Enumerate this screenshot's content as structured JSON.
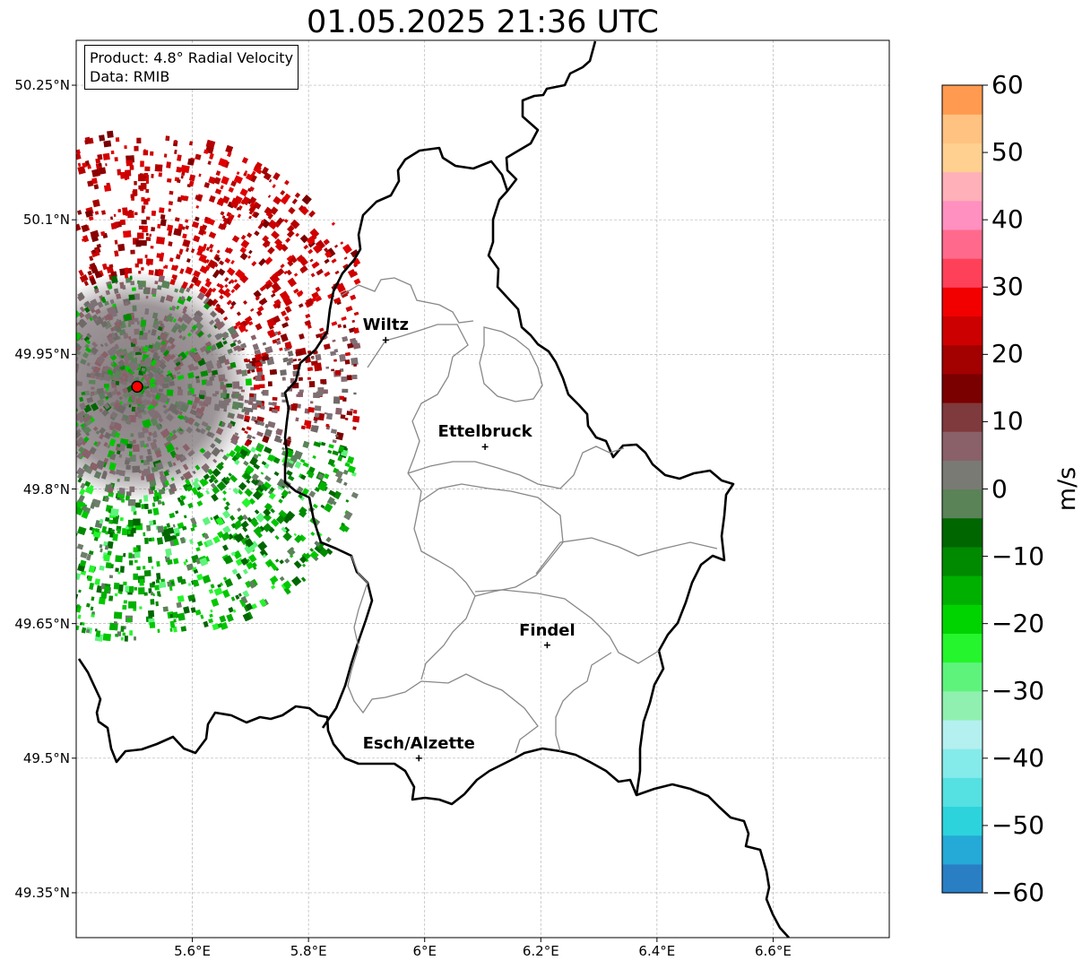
{
  "title": "01.05.2025 21:36 UTC",
  "info": {
    "product": "Product: 4.8° Radial Velocity",
    "data": "Data: RMIB"
  },
  "map": {
    "lon_range": [
      5.4,
      6.8
    ],
    "lat_range": [
      49.3,
      50.3
    ],
    "lat_ticks": [
      {
        "value": 50.25,
        "label": "50.25°N"
      },
      {
        "value": 50.1,
        "label": "50.1°N"
      },
      {
        "value": 49.95,
        "label": "49.95°N"
      },
      {
        "value": 49.8,
        "label": "49.8°N"
      },
      {
        "value": 49.65,
        "label": "49.65°N"
      },
      {
        "value": 49.5,
        "label": "49.5°N"
      },
      {
        "value": 49.35,
        "label": "49.35°N"
      }
    ],
    "lon_ticks": [
      {
        "value": 5.6,
        "label": "5.6°E"
      },
      {
        "value": 5.8,
        "label": "5.8°E"
      },
      {
        "value": 6.0,
        "label": "6°E"
      },
      {
        "value": 6.2,
        "label": "6.2°E"
      },
      {
        "value": 6.4,
        "label": "6.4°E"
      },
      {
        "value": 6.6,
        "label": "6.6°E"
      }
    ],
    "radar_site": {
      "lon": 5.505,
      "lat": 49.914,
      "color": "#ff0000"
    },
    "cities": [
      {
        "name": "Wiltz",
        "lon": 5.933,
        "lat": 49.966
      },
      {
        "name": "Ettelbruck",
        "lon": 6.104,
        "lat": 49.847
      },
      {
        "name": "Findel",
        "lon": 6.211,
        "lat": 49.626
      },
      {
        "name": "Esch/Alzette",
        "lon": 5.99,
        "lat": 49.5
      }
    ]
  },
  "colorbar": {
    "min": -60,
    "max": 60,
    "unit": "m/s",
    "tick_labels": [
      {
        "value": 60,
        "label": "60"
      },
      {
        "value": 50,
        "label": "50"
      },
      {
        "value": 40,
        "label": "40"
      },
      {
        "value": 30,
        "label": "30"
      },
      {
        "value": 20,
        "label": "20"
      },
      {
        "value": 10,
        "label": "10"
      },
      {
        "value": 0,
        "label": "0"
      },
      {
        "value": -10,
        "label": "−10"
      },
      {
        "value": -20,
        "label": "−20"
      },
      {
        "value": -30,
        "label": "−30"
      },
      {
        "value": -40,
        "label": "−40"
      },
      {
        "value": -50,
        "label": "−50"
      },
      {
        "value": -60,
        "label": "−60"
      }
    ],
    "colors": [
      "#2a7fc4",
      "#25a9d6",
      "#2cd3dc",
      "#55e0e2",
      "#85eaea",
      "#b4f0f0",
      "#90f0b0",
      "#5ef47c",
      "#25f52c",
      "#00d400",
      "#00b000",
      "#008a00",
      "#006600",
      "#5a8358",
      "#7a7a74",
      "#8a6069",
      "#7f3a3e",
      "#7a0000",
      "#a30000",
      "#cc0000",
      "#f20000",
      "#ff4059",
      "#ff6a8c",
      "#ff90c0",
      "#ffb0b8",
      "#ffd090",
      "#ffc280",
      "#ff9a50"
    ]
  }
}
